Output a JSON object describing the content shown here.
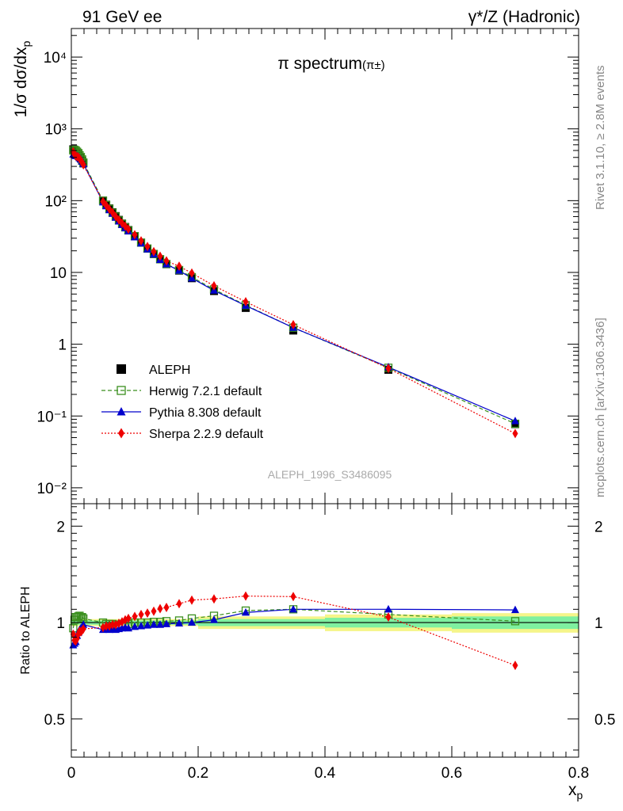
{
  "header": {
    "left": "91 GeV ee",
    "right": "γ*/Z (Hadronic)"
  },
  "side_labels": {
    "rivet": "Rivet 3.1.10, ≥ 2.8M events",
    "mcplots": "mcplots.cern.ch [arXiv:1306.3436]"
  },
  "analysis_id": "ALEPH_1996_S3486095",
  "colors": {
    "aleph": "#000000",
    "herwig": "#3a8f1e",
    "pythia": "#0000cc",
    "sherpa": "#ee0000",
    "band_inner": "#7ff0a0",
    "band_outer": "#f5f58a"
  },
  "chart_data": [
    {
      "type": "scatter",
      "title": "π spectrum",
      "title_sub": "(π±)",
      "ylabel": "1/σ dσ/dx",
      "ylabel_sub": "p",
      "yscale": "log",
      "xlim": [
        0,
        0.8
      ],
      "ylim": [
        0.006,
        25000
      ],
      "ytick_labels": [
        "10⁻²",
        "10⁻¹",
        "1",
        "10",
        "10²",
        "10³",
        "10⁴"
      ],
      "legend_placement": "lower-left",
      "x": [
        0.003,
        0.005,
        0.007,
        0.009,
        0.011,
        0.013,
        0.015,
        0.017,
        0.019,
        0.05,
        0.055,
        0.06,
        0.065,
        0.07,
        0.075,
        0.08,
        0.085,
        0.09,
        0.1,
        0.11,
        0.12,
        0.13,
        0.14,
        0.15,
        0.17,
        0.19,
        0.225,
        0.275,
        0.35,
        0.5,
        0.7
      ],
      "series": [
        {
          "name": "ALEPH",
          "marker": "square-filled",
          "values": [
            520,
            500,
            480,
            460,
            440,
            410,
            390,
            360,
            330,
            100,
            88,
            78,
            69,
            61,
            54,
            48,
            43,
            39,
            32,
            26,
            21.5,
            18,
            15.2,
            13,
            10.6,
            8.3,
            5.5,
            3.2,
            1.55,
            0.44,
            0.077
          ]
        },
        {
          "name": "Herwig 7.2.1 default",
          "marker": "square-open",
          "line": "dashed",
          "values": [
            500,
            510,
            500,
            480,
            460,
            430,
            405,
            375,
            340,
            100,
            87,
            77,
            68,
            60,
            53,
            47.5,
            42.5,
            38.5,
            32,
            26,
            21.5,
            18.1,
            15.3,
            13.1,
            10.8,
            8.6,
            5.8,
            3.5,
            1.7,
            0.47,
            0.078
          ]
        },
        {
          "name": "Pythia 8.308 default",
          "marker": "triangle-filled",
          "line": "solid",
          "values": [
            440,
            430,
            420,
            420,
            410,
            390,
            375,
            350,
            325,
            95,
            84,
            74,
            66,
            58,
            51.5,
            46,
            41.5,
            37.5,
            31,
            25.4,
            21,
            17.8,
            15,
            13,
            10.6,
            8.3,
            5.6,
            3.45,
            1.7,
            0.48,
            0.085
          ]
        },
        {
          "name": "Sherpa 2.2.9 default",
          "marker": "diamond-filled",
          "line": "dotted",
          "values": [
            480,
            440,
            420,
            410,
            405,
            385,
            365,
            340,
            315,
            97,
            86,
            76,
            68,
            60,
            54,
            48.5,
            44,
            40,
            33.5,
            27.5,
            23,
            19.5,
            16.8,
            14.5,
            12.2,
            9.8,
            6.5,
            3.9,
            1.87,
            0.46,
            0.057
          ]
        }
      ]
    },
    {
      "type": "scatter",
      "ylabel": "Ratio to ALEPH",
      "xlabel": "x",
      "xlabel_sub": "p",
      "xlim": [
        0,
        0.8
      ],
      "ylim": [
        0.38,
        2.35
      ],
      "yscale": "log",
      "ytick_labels": [
        "0.5",
        "1",
        "2"
      ],
      "xtick_labels": [
        "0",
        "0.2",
        "0.4",
        "0.6",
        "0.8"
      ],
      "reference": 1,
      "uncertainty_band": {
        "edges": [
          0,
          0.2,
          0.4,
          0.6,
          0.8
        ],
        "inner": [
          [
            0.985,
            1.015
          ],
          [
            0.975,
            1.025
          ],
          [
            0.965,
            1.035
          ],
          [
            0.955,
            1.045
          ]
        ],
        "outer": [
          [
            0.975,
            1.025
          ],
          [
            0.955,
            1.045
          ],
          [
            0.94,
            1.06
          ],
          [
            0.93,
            1.07
          ]
        ]
      },
      "x": [
        0.003,
        0.005,
        0.007,
        0.009,
        0.011,
        0.013,
        0.015,
        0.017,
        0.019,
        0.05,
        0.055,
        0.06,
        0.065,
        0.07,
        0.075,
        0.08,
        0.085,
        0.09,
        0.1,
        0.11,
        0.12,
        0.13,
        0.14,
        0.15,
        0.17,
        0.19,
        0.225,
        0.275,
        0.35,
        0.5,
        0.7
      ],
      "series": [
        {
          "name": "Herwig 7.2.1 default",
          "marker": "square-open",
          "line": "dashed",
          "values": [
            0.96,
            1.02,
            1.04,
            1.04,
            1.045,
            1.05,
            1.04,
            1.04,
            1.03,
            1.0,
            0.99,
            0.99,
            0.99,
            0.985,
            0.985,
            0.99,
            0.99,
            0.99,
            1.0,
            1.0,
            1.0,
            1.005,
            1.005,
            1.01,
            1.015,
            1.03,
            1.05,
            1.09,
            1.1,
            1.06,
            1.01
          ]
        },
        {
          "name": "Pythia 8.308 default",
          "marker": "triangle-filled",
          "line": "solid",
          "values": [
            0.85,
            0.86,
            0.87,
            0.91,
            0.93,
            0.95,
            0.96,
            0.97,
            0.985,
            0.95,
            0.955,
            0.95,
            0.955,
            0.95,
            0.955,
            0.96,
            0.965,
            0.96,
            0.97,
            0.975,
            0.98,
            0.985,
            0.985,
            0.99,
            0.995,
            1.0,
            1.02,
            1.075,
            1.1,
            1.1,
            1.095
          ]
        },
        {
          "name": "Sherpa 2.2.9 default",
          "marker": "diamond-filled",
          "line": "dotted",
          "values": [
            0.92,
            0.88,
            0.875,
            0.89,
            0.92,
            0.94,
            0.935,
            0.945,
            0.955,
            0.965,
            0.975,
            0.975,
            0.985,
            0.985,
            0.995,
            1.005,
            1.02,
            1.03,
            1.045,
            1.06,
            1.07,
            1.085,
            1.105,
            1.115,
            1.145,
            1.175,
            1.185,
            1.21,
            1.205,
            1.04,
            0.735
          ]
        }
      ]
    }
  ]
}
